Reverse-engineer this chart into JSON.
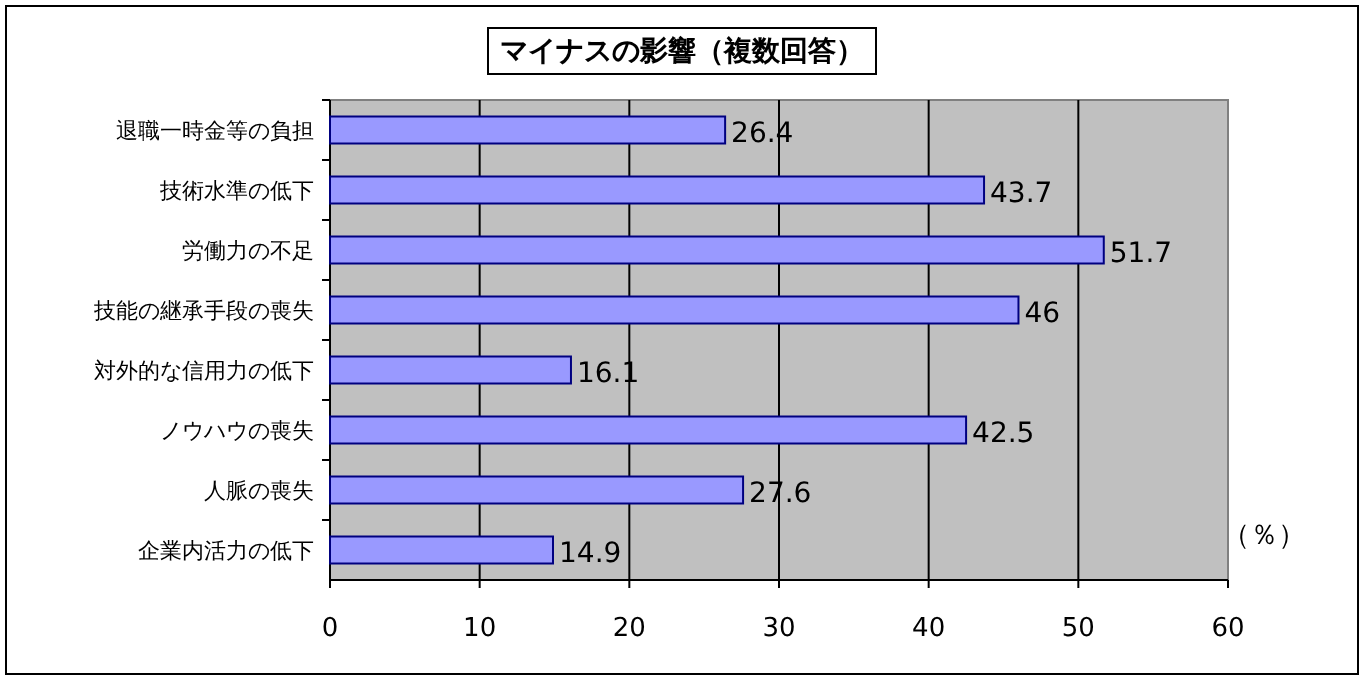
{
  "chart_data": {
    "type": "bar",
    "orientation": "horizontal",
    "title": "マイナスの影響（複数回答）",
    "xlabel": "（％）",
    "categories": [
      "退職一時金等の負担",
      "技術水準の低下",
      "労働力の不足",
      "技能の継承手段の喪失",
      "対外的な信用力の低下",
      "ノウハウの喪失",
      "人脈の喪失",
      "企業内活力の低下"
    ],
    "values": [
      26.4,
      43.7,
      51.7,
      46,
      16.1,
      42.5,
      27.6,
      14.9
    ],
    "color": "#9999ff",
    "xlim": [
      0,
      60
    ],
    "xticks": [
      0,
      10,
      20,
      30,
      40,
      50,
      60
    ],
    "grid": "x",
    "data_labels": true
  }
}
